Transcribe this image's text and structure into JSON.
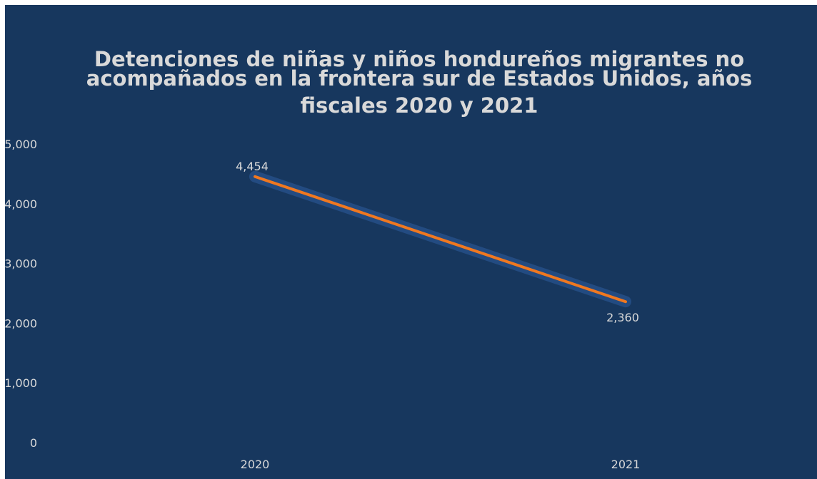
{
  "chart_data": {
    "type": "line",
    "title": "Detenciones de niñas y niños hondureños migrantes no acompañados  en la frontera sur de Estados Unidos, años fiscales 2020 y 2021",
    "title_lines": [
      "Detenciones de niñas y niños hondureños migrantes no",
      "acompañados  en la frontera sur de Estados Unidos, años",
      "fiscales 2020 y 2021"
    ],
    "categories": [
      "2020",
      "2021"
    ],
    "series": [
      {
        "values": [
          4454,
          2360
        ],
        "data_labels": [
          "4,454",
          "2,360"
        ]
      }
    ],
    "ylim": [
      0,
      5000
    ],
    "yticks": [
      0,
      1000,
      2000,
      3000,
      4000,
      5000
    ],
    "ytick_labels": [
      "0",
      "1,000",
      "2,000",
      "3,000",
      "4,000",
      "5,000"
    ],
    "grid": false,
    "legend": "none",
    "colors": {
      "background": "#17375e",
      "line": "#f07820",
      "text": "#d9d9d9"
    }
  }
}
